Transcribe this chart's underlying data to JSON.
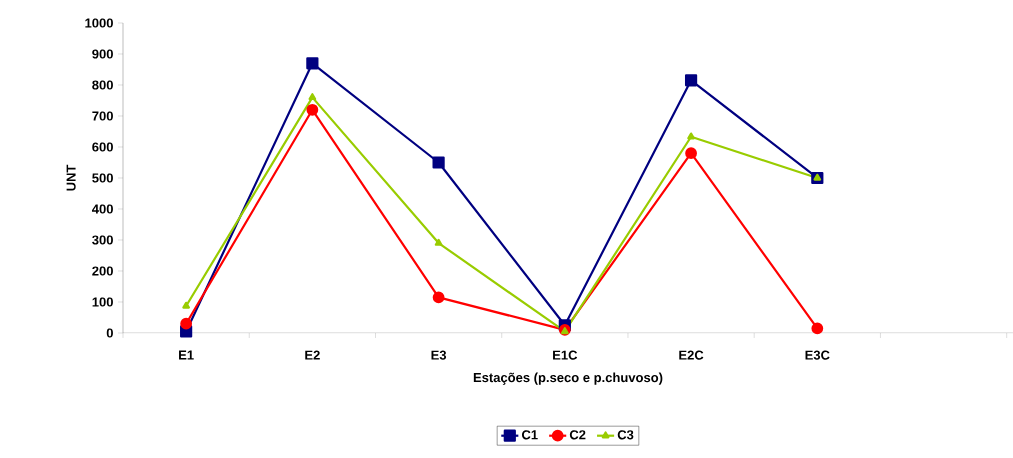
{
  "chart_data": {
    "type": "line",
    "xlabel": "Estações (p.seco e p.chuvoso)",
    "ylabel": "UNT",
    "categories": [
      "E1",
      "E2",
      "E3",
      "E1C",
      "E2C",
      "E3C",
      null
    ],
    "series": [
      {
        "name": "C1",
        "color": "#000080",
        "marker": "square",
        "values": [
          5,
          870,
          550,
          25,
          815,
          500,
          null
        ]
      },
      {
        "name": "C2",
        "color": "#ff0000",
        "marker": "circle",
        "values": [
          30,
          720,
          115,
          10,
          580,
          15,
          null
        ]
      },
      {
        "name": "C3",
        "color": "#99cc00",
        "marker": "triangle",
        "values": [
          87,
          760,
          290,
          5,
          633,
          500,
          null
        ]
      }
    ],
    "ylim": [
      0,
      1000
    ],
    "yticks": [
      0,
      100,
      200,
      300,
      400,
      500,
      600,
      700,
      800,
      900,
      1000
    ],
    "grid": false,
    "legend": "bottom",
    "line_style": "solid"
  }
}
